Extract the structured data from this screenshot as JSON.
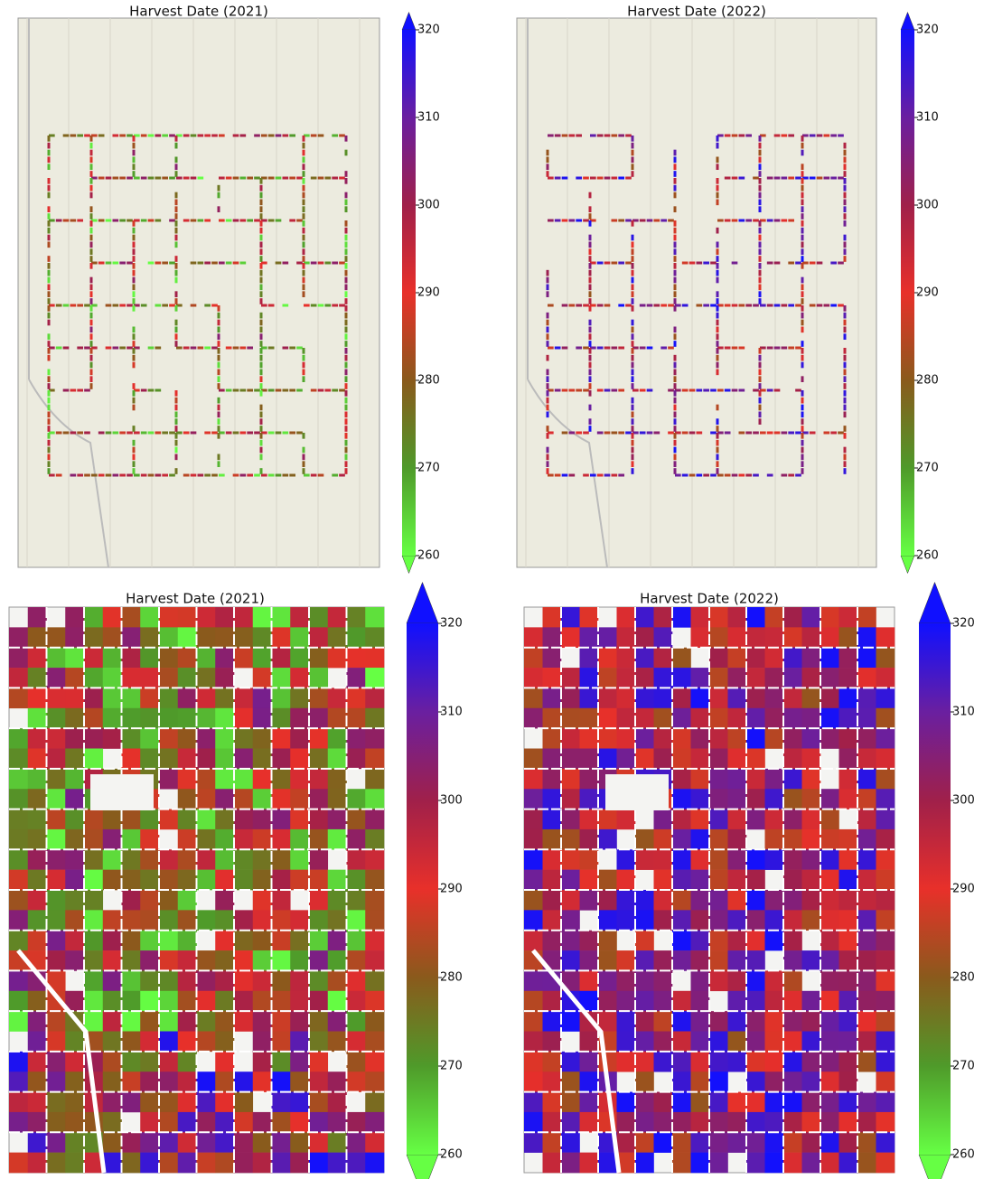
{
  "panels": [
    {
      "title": "Harvest Date (2021)",
      "colorbar": {
        "lim": [
          260,
          320
        ],
        "ticks": [
          260,
          270,
          280,
          290,
          300,
          310,
          320
        ],
        "colors": [
          "#66ff44",
          "#4f9a2a",
          "#8a5a1c",
          "#e8302a",
          "#a0204a",
          "#6a1fa0",
          "#1010ff"
        ]
      }
    },
    {
      "title": "Harvest Date (2022)",
      "colorbar": {
        "lim": [
          260,
          320
        ],
        "ticks": [
          260,
          270,
          280,
          290,
          300,
          310,
          320
        ],
        "colors": [
          "#66ff44",
          "#4f9a2a",
          "#8a5a1c",
          "#e8302a",
          "#a0204a",
          "#6a1fa0",
          "#1010ff"
        ]
      }
    },
    {
      "title": "Harvest Date (2021)",
      "colorbar": {
        "lim": [
          260,
          320
        ],
        "ticks": [
          260,
          270,
          280,
          290,
          300,
          310,
          320
        ],
        "colors": [
          "#66ff44",
          "#4f9a2a",
          "#8a5a1c",
          "#e8302a",
          "#a0204a",
          "#6a1fa0",
          "#1010ff"
        ]
      }
    },
    {
      "title": "Harvest Date (2022)",
      "colorbar": {
        "lim": [
          260,
          320
        ],
        "ticks": [
          260,
          270,
          280,
          290,
          300,
          310,
          320
        ],
        "colors": [
          "#66ff44",
          "#4f9a2a",
          "#8a5a1c",
          "#e8302a",
          "#a0204a",
          "#6a1fa0",
          "#1010ff"
        ]
      }
    }
  ]
}
